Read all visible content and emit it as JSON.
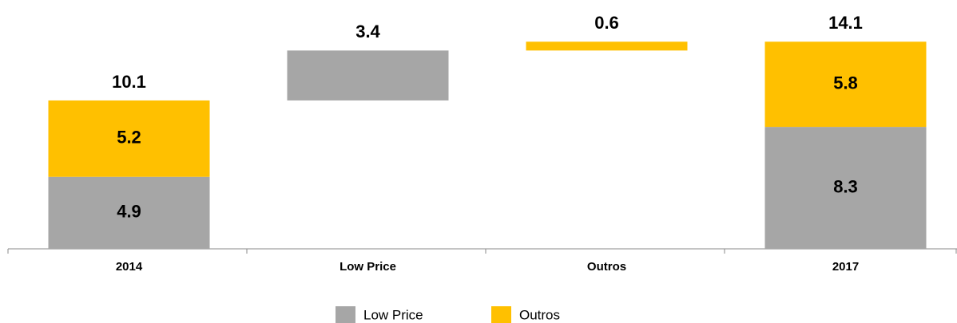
{
  "chart_data": {
    "type": "waterfall",
    "categories": [
      "2014",
      "Low Price",
      "Outros",
      "2017"
    ],
    "series": [
      {
        "name": "Low Price",
        "color": "#a6a6a6",
        "values": [
          4.9,
          3.4,
          null,
          8.3
        ]
      },
      {
        "name": "Outros",
        "color": "#ffc000",
        "values": [
          5.2,
          null,
          0.6,
          5.8
        ]
      }
    ],
    "totals": [
      10.1,
      null,
      null,
      14.1
    ],
    "ylim": [
      0,
      15
    ]
  }
}
